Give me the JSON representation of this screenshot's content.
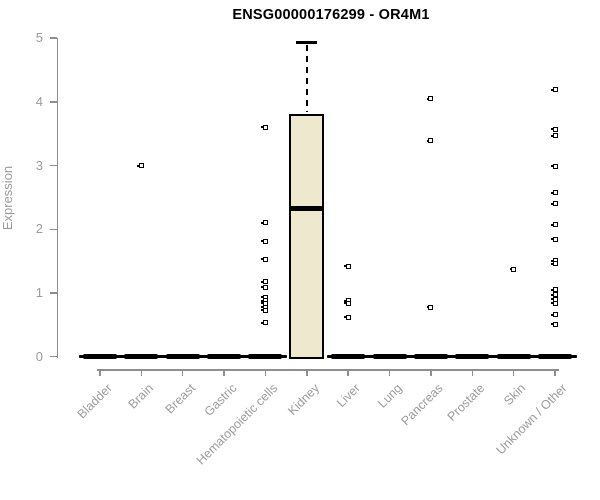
{
  "title": "ENSG00000176299 - OR4M1",
  "y_axis": {
    "label": "Expression",
    "tick_labels": [
      "0",
      "1",
      "2",
      "3",
      "4",
      "5"
    ]
  },
  "colors": {
    "box_fill": "#EDE8CE",
    "box_border": "#000000",
    "axis_line": "#8E8E8E",
    "axis_text": "#9B9B9B",
    "title_text": "#000000",
    "point": "#000000"
  },
  "chart_data": {
    "type": "boxplot",
    "title": "ENSG00000176299 - OR4M1",
    "xlabel": "",
    "ylabel": "Expression",
    "ylim": [
      0,
      5
    ],
    "y_ticks": [
      0,
      1,
      2,
      3,
      4,
      5
    ],
    "grid": false,
    "legend": false,
    "categories": [
      "Bladder",
      "Brain",
      "Breast",
      "Gastric",
      "Hematopoietic cells",
      "Kidney",
      "Liver",
      "Lung",
      "Pancreas",
      "Prostate",
      "Skin",
      "Unknown / Other"
    ],
    "series": [
      {
        "category": "Bladder",
        "min": 0,
        "q1": 0,
        "median": 0,
        "q3": 0,
        "max": 0,
        "outliers": []
      },
      {
        "category": "Brain",
        "min": 0,
        "q1": 0,
        "median": 0,
        "q3": 0,
        "max": 0,
        "outliers": [
          3.0
        ]
      },
      {
        "category": "Breast",
        "min": 0,
        "q1": 0,
        "median": 0,
        "q3": 0,
        "max": 0,
        "outliers": []
      },
      {
        "category": "Gastric",
        "min": 0,
        "q1": 0,
        "median": 0,
        "q3": 0,
        "max": 0,
        "outliers": []
      },
      {
        "category": "Hematopoietic cells",
        "min": 0,
        "q1": 0,
        "median": 0,
        "q3": 0,
        "max": 0,
        "outliers": [
          3.6,
          2.1,
          1.81,
          1.53,
          1.18,
          1.09,
          0.93,
          0.88,
          0.84,
          0.78,
          0.73,
          0.53
        ]
      },
      {
        "category": "Kidney",
        "min": 0,
        "q1": 0,
        "median": 2.33,
        "q3": 3.81,
        "max": 4.93,
        "outliers": []
      },
      {
        "category": "Liver",
        "min": 0,
        "q1": 0,
        "median": 0,
        "q3": 0,
        "max": 0,
        "outliers": [
          1.42,
          0.88,
          0.84,
          0.62
        ]
      },
      {
        "category": "Lung",
        "min": 0,
        "q1": 0,
        "median": 0,
        "q3": 0,
        "max": 0,
        "outliers": []
      },
      {
        "category": "Pancreas",
        "min": 0,
        "q1": 0,
        "median": 0,
        "q3": 0,
        "max": 0,
        "outliers": [
          4.05,
          3.39,
          0.78
        ]
      },
      {
        "category": "Prostate",
        "min": 0,
        "q1": 0,
        "median": 0,
        "q3": 0,
        "max": 0,
        "outliers": []
      },
      {
        "category": "Skin",
        "min": 0,
        "q1": 0,
        "median": 0,
        "q3": 0,
        "max": 0,
        "outliers": [
          1.37
        ]
      },
      {
        "category": "Unknown / Other",
        "min": 0,
        "q1": 0,
        "median": 0,
        "q3": 0,
        "max": 0,
        "outliers": [
          4.19,
          3.57,
          3.47,
          2.99,
          2.57,
          2.4,
          2.07,
          1.84,
          1.51,
          1.46,
          1.05,
          0.97,
          0.9,
          0.84,
          0.66,
          0.51
        ]
      }
    ]
  }
}
